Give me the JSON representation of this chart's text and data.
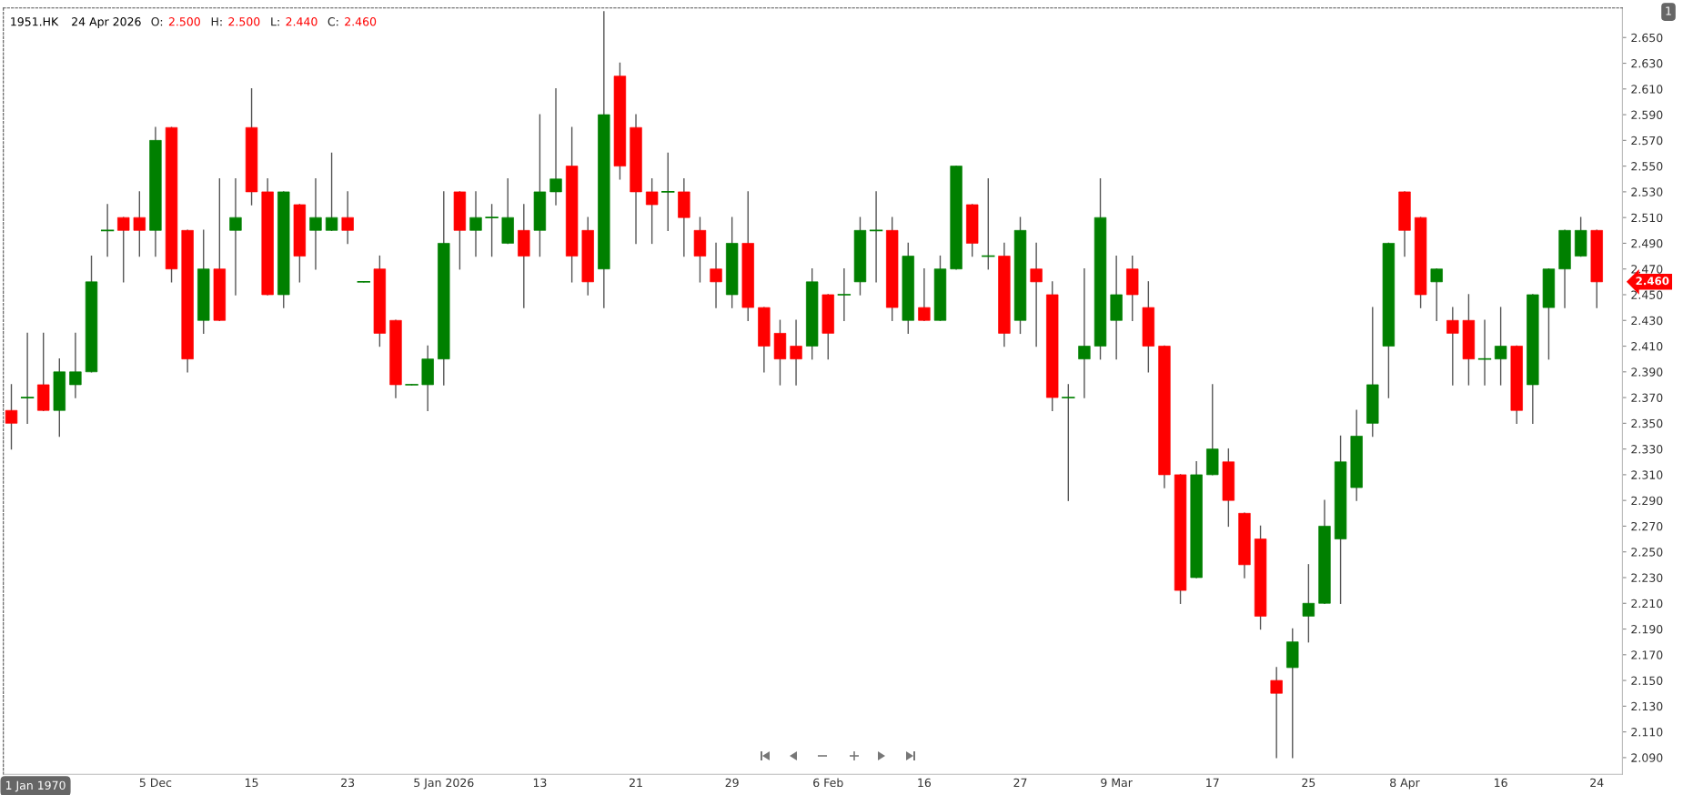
{
  "chart_data": {
    "type": "candlestick",
    "title": "1951.HK",
    "subtitle": "24 Apr 2026",
    "categories": [
      null,
      null,
      null,
      null,
      null,
      null,
      null,
      null,
      null,
      "5 Dec",
      null,
      null,
      null,
      null,
      null,
      "15",
      null,
      null,
      null,
      null,
      null,
      "23",
      null,
      null,
      null,
      null,
      null,
      "5 Jan 2026",
      null,
      null,
      null,
      null,
      null,
      "13",
      null,
      null,
      null,
      null,
      null,
      "21",
      null,
      null,
      null,
      null,
      null,
      "29",
      null,
      null,
      null,
      null,
      null,
      "6 Feb",
      null,
      null,
      null,
      null,
      null,
      "16",
      null,
      null,
      null,
      null,
      null,
      "27",
      null,
      null,
      null,
      null,
      null,
      "9 Mar",
      null,
      null,
      null,
      null,
      null,
      "17",
      null,
      null,
      null,
      null,
      null,
      "25",
      null,
      null,
      null,
      null,
      null,
      "8 Apr",
      null,
      null,
      null,
      null,
      null,
      "16",
      null,
      null,
      null,
      null,
      null,
      "24"
    ],
    "ohlc": [
      [
        2.36,
        2.38,
        2.33,
        2.35
      ],
      [
        2.37,
        2.42,
        2.35,
        2.37
      ],
      [
        2.38,
        2.42,
        2.36,
        2.36
      ],
      [
        2.36,
        2.4,
        2.34,
        2.39
      ],
      [
        2.38,
        2.42,
        2.37,
        2.39
      ],
      [
        2.39,
        2.48,
        2.39,
        2.46
      ],
      [
        2.5,
        2.52,
        2.48,
        2.5
      ],
      [
        2.51,
        2.51,
        2.46,
        2.5
      ],
      [
        2.51,
        2.53,
        2.48,
        2.5
      ],
      [
        2.5,
        2.58,
        2.48,
        2.57
      ],
      [
        2.58,
        2.58,
        2.46,
        2.47
      ],
      [
        2.5,
        2.5,
        2.39,
        2.4
      ],
      [
        2.43,
        2.5,
        2.42,
        2.47
      ],
      [
        2.47,
        2.54,
        2.43,
        2.43
      ],
      [
        2.5,
        2.54,
        2.45,
        2.51
      ],
      [
        2.58,
        2.61,
        2.52,
        2.53
      ],
      [
        2.53,
        2.54,
        2.45,
        2.45
      ],
      [
        2.45,
        2.53,
        2.44,
        2.53
      ],
      [
        2.52,
        2.52,
        2.46,
        2.48
      ],
      [
        2.5,
        2.54,
        2.47,
        2.51
      ],
      [
        2.5,
        2.56,
        2.5,
        2.51
      ],
      [
        2.51,
        2.53,
        2.49,
        2.5
      ],
      [
        2.46,
        2.46,
        2.46,
        2.46
      ],
      [
        2.47,
        2.48,
        2.41,
        2.42
      ],
      [
        2.43,
        2.43,
        2.37,
        2.38
      ],
      [
        2.38,
        2.38,
        2.38,
        2.38
      ],
      [
        2.38,
        2.41,
        2.36,
        2.4
      ],
      [
        2.4,
        2.53,
        2.38,
        2.49
      ],
      [
        2.53,
        2.53,
        2.47,
        2.5
      ],
      [
        2.5,
        2.53,
        2.48,
        2.51
      ],
      [
        2.51,
        2.52,
        2.48,
        2.51
      ],
      [
        2.49,
        2.54,
        2.49,
        2.51
      ],
      [
        2.5,
        2.52,
        2.44,
        2.48
      ],
      [
        2.5,
        2.59,
        2.48,
        2.53
      ],
      [
        2.53,
        2.61,
        2.52,
        2.54
      ],
      [
        2.55,
        2.58,
        2.46,
        2.48
      ],
      [
        2.5,
        2.51,
        2.45,
        2.46
      ],
      [
        2.47,
        2.67,
        2.44,
        2.59
      ],
      [
        2.62,
        2.63,
        2.54,
        2.55
      ],
      [
        2.58,
        2.59,
        2.49,
        2.53
      ],
      [
        2.53,
        2.54,
        2.49,
        2.52
      ],
      [
        2.53,
        2.56,
        2.5,
        2.53
      ],
      [
        2.53,
        2.54,
        2.48,
        2.51
      ],
      [
        2.5,
        2.51,
        2.46,
        2.48
      ],
      [
        2.47,
        2.49,
        2.44,
        2.46
      ],
      [
        2.45,
        2.51,
        2.44,
        2.49
      ],
      [
        2.49,
        2.53,
        2.43,
        2.44
      ],
      [
        2.44,
        2.44,
        2.39,
        2.41
      ],
      [
        2.42,
        2.43,
        2.38,
        2.4
      ],
      [
        2.41,
        2.43,
        2.38,
        2.4
      ],
      [
        2.41,
        2.47,
        2.4,
        2.46
      ],
      [
        2.45,
        2.45,
        2.4,
        2.42
      ],
      [
        2.45,
        2.47,
        2.43,
        2.45
      ],
      [
        2.46,
        2.51,
        2.45,
        2.5
      ],
      [
        2.5,
        2.53,
        2.46,
        2.5
      ],
      [
        2.5,
        2.51,
        2.43,
        2.44
      ],
      [
        2.43,
        2.49,
        2.42,
        2.48
      ],
      [
        2.44,
        2.47,
        2.43,
        2.43
      ],
      [
        2.43,
        2.48,
        2.43,
        2.47
      ],
      [
        2.47,
        2.55,
        2.47,
        2.55
      ],
      [
        2.52,
        2.52,
        2.48,
        2.49
      ],
      [
        2.48,
        2.54,
        2.47,
        2.48
      ],
      [
        2.48,
        2.49,
        2.41,
        2.42
      ],
      [
        2.43,
        2.51,
        2.42,
        2.5
      ],
      [
        2.47,
        2.49,
        2.41,
        2.46
      ],
      [
        2.45,
        2.46,
        2.36,
        2.37
      ],
      [
        2.37,
        2.38,
        2.29,
        2.37
      ],
      [
        2.4,
        2.47,
        2.37,
        2.41
      ],
      [
        2.41,
        2.54,
        2.4,
        2.51
      ],
      [
        2.43,
        2.48,
        2.4,
        2.45
      ],
      [
        2.47,
        2.48,
        2.43,
        2.45
      ],
      [
        2.44,
        2.46,
        2.39,
        2.41
      ],
      [
        2.41,
        2.41,
        2.3,
        2.31
      ],
      [
        2.31,
        2.31,
        2.21,
        2.22
      ],
      [
        2.23,
        2.32,
        2.23,
        2.31
      ],
      [
        2.31,
        2.38,
        2.31,
        2.33
      ],
      [
        2.32,
        2.33,
        2.27,
        2.29
      ],
      [
        2.28,
        2.28,
        2.23,
        2.24
      ],
      [
        2.26,
        2.27,
        2.19,
        2.2
      ],
      [
        2.15,
        2.16,
        2.09,
        2.14
      ],
      [
        2.16,
        2.19,
        2.09,
        2.18
      ],
      [
        2.2,
        2.24,
        2.18,
        2.21
      ],
      [
        2.21,
        2.29,
        2.21,
        2.27
      ],
      [
        2.26,
        2.34,
        2.21,
        2.32
      ],
      [
        2.3,
        2.36,
        2.29,
        2.34
      ],
      [
        2.35,
        2.44,
        2.34,
        2.38
      ],
      [
        2.41,
        2.49,
        2.37,
        2.49
      ],
      [
        2.53,
        2.53,
        2.48,
        2.5
      ],
      [
        2.51,
        2.51,
        2.44,
        2.45
      ],
      [
        2.46,
        2.47,
        2.43,
        2.47
      ],
      [
        2.43,
        2.44,
        2.38,
        2.42
      ],
      [
        2.43,
        2.45,
        2.38,
        2.4
      ],
      [
        2.4,
        2.43,
        2.38,
        2.4
      ],
      [
        2.4,
        2.44,
        2.38,
        2.41
      ],
      [
        2.41,
        2.41,
        2.35,
        2.36
      ],
      [
        2.38,
        2.45,
        2.35,
        2.45
      ],
      [
        2.44,
        2.47,
        2.4,
        2.47
      ],
      [
        2.47,
        2.5,
        2.44,
        2.5
      ],
      [
        2.48,
        2.51,
        2.48,
        2.5
      ],
      [
        2.5,
        2.5,
        2.44,
        2.46
      ]
    ],
    "colors": [
      "#ff0000",
      "#008000",
      "#ff0000",
      "#008000",
      "#008000",
      "#008000",
      "#008000",
      "#ff0000",
      "#ff0000",
      "#008000",
      "#ff0000",
      "#ff0000",
      "#008000",
      "#ff0000",
      "#008000",
      "#ff0000",
      "#ff0000",
      "#008000",
      "#ff0000",
      "#008000",
      "#008000",
      "#ff0000",
      "#008000",
      "#ff0000",
      "#ff0000",
      "#008000",
      "#008000",
      "#008000",
      "#ff0000",
      "#008000",
      "#008000",
      "#008000",
      "#ff0000",
      "#008000",
      "#008000",
      "#ff0000",
      "#ff0000",
      "#008000",
      "#ff0000",
      "#ff0000",
      "#ff0000",
      "#008000",
      "#ff0000",
      "#ff0000",
      "#ff0000",
      "#008000",
      "#ff0000",
      "#ff0000",
      "#ff0000",
      "#ff0000",
      "#008000",
      "#ff0000",
      "#008000",
      "#008000",
      "#008000",
      "#ff0000",
      "#008000",
      "#ff0000",
      "#008000",
      "#008000",
      "#ff0000",
      "#008000",
      "#ff0000",
      "#008000",
      "#ff0000",
      "#ff0000",
      "#008000",
      "#008000",
      "#008000",
      "#008000",
      "#ff0000",
      "#ff0000",
      "#ff0000",
      "#ff0000",
      "#008000",
      "#008000",
      "#ff0000",
      "#ff0000",
      "#ff0000",
      "#ff0000",
      "#008000",
      "#008000",
      "#008000",
      "#008000",
      "#008000",
      "#008000",
      "#008000",
      "#ff0000",
      "#ff0000",
      "#008000",
      "#ff0000",
      "#ff0000",
      "#008000",
      "#008000",
      "#ff0000",
      "#008000",
      "#008000",
      "#008000",
      "#008000",
      "#ff0000"
    ],
    "ylim": [
      2.077,
      2.673
    ],
    "yticks": [
      {
        "value": 2.09,
        "label": "2.090"
      },
      {
        "value": 2.11,
        "label": "2.110"
      },
      {
        "value": 2.13,
        "label": "2.130"
      },
      {
        "value": 2.15,
        "label": "2.150"
      },
      {
        "value": 2.17,
        "label": "2.170"
      },
      {
        "value": 2.19,
        "label": "2.190"
      },
      {
        "value": 2.21,
        "label": "2.210"
      },
      {
        "value": 2.23,
        "label": "2.230"
      },
      {
        "value": 2.25,
        "label": "2.250"
      },
      {
        "value": 2.27,
        "label": "2.270"
      },
      {
        "value": 2.29,
        "label": "2.290"
      },
      {
        "value": 2.31,
        "label": "2.310"
      },
      {
        "value": 2.33,
        "label": "2.330"
      },
      {
        "value": 2.35,
        "label": "2.350"
      },
      {
        "value": 2.37,
        "label": "2.370"
      },
      {
        "value": 2.39,
        "label": "2.390"
      },
      {
        "value": 2.41,
        "label": "2.410"
      },
      {
        "value": 2.43,
        "label": "2.430"
      },
      {
        "value": 2.45,
        "label": "2.450"
      },
      {
        "value": 2.47,
        "label": "2.470"
      },
      {
        "value": 2.49,
        "label": "2.490"
      },
      {
        "value": 2.51,
        "label": "2.510"
      },
      {
        "value": 2.53,
        "label": "2.530"
      },
      {
        "value": 2.55,
        "label": "2.550"
      },
      {
        "value": 2.57,
        "label": "2.570"
      },
      {
        "value": 2.59,
        "label": "2.590"
      },
      {
        "value": 2.61,
        "label": "2.610"
      },
      {
        "value": 2.63,
        "label": "2.630"
      },
      {
        "value": 2.65,
        "label": "2.650"
      }
    ],
    "annotations": [
      "O:",
      "2.500",
      "H:",
      "2.500",
      "L:",
      "2.440",
      "C:",
      "2.460",
      "2.460",
      "1",
      "1 Jan 1970"
    ]
  }
}
